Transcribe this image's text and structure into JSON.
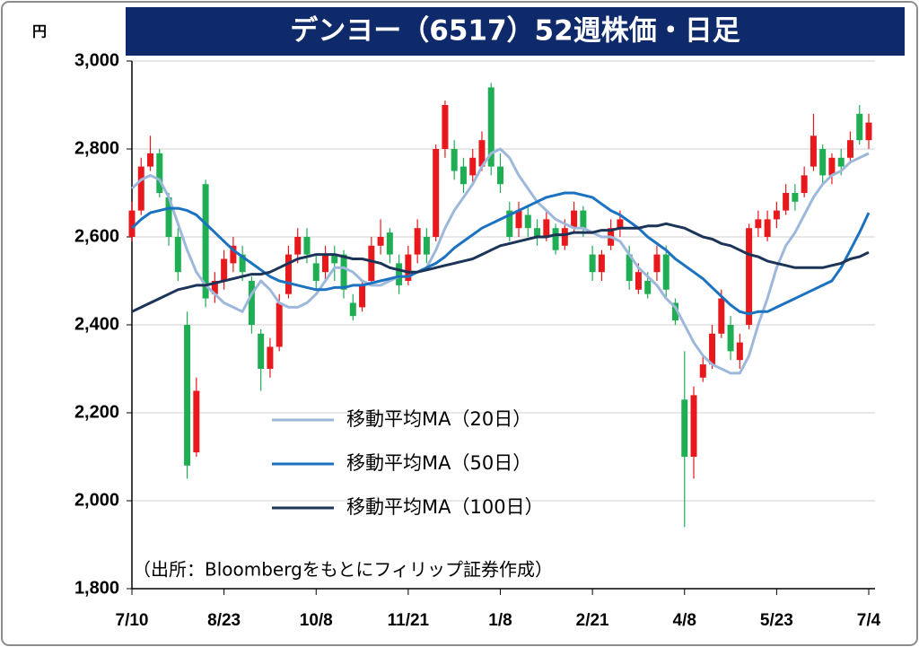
{
  "chart_data": {
    "type": "candlestick",
    "title": "デンヨー（6517）52週株価・日足",
    "unit": "円",
    "source": "（出所：Bloombergをもとにフィリップ証券作成）",
    "categories": [
      "7/10",
      null,
      null,
      null,
      null,
      null,
      null,
      null,
      null,
      null,
      "8/23",
      null,
      null,
      null,
      null,
      null,
      null,
      null,
      null,
      null,
      "10/8",
      null,
      null,
      null,
      null,
      null,
      null,
      null,
      null,
      null,
      "11/21",
      null,
      null,
      null,
      null,
      null,
      null,
      null,
      null,
      null,
      "1/8",
      null,
      null,
      null,
      null,
      null,
      null,
      null,
      null,
      null,
      "2/21",
      null,
      null,
      null,
      null,
      null,
      null,
      null,
      null,
      null,
      "4/8",
      null,
      null,
      null,
      null,
      null,
      null,
      null,
      null,
      null,
      "5/23",
      null,
      null,
      null,
      null,
      null,
      null,
      null,
      null,
      null,
      "7/4"
    ],
    "open": [
      2600,
      2660,
      2760,
      2790,
      2690,
      2600,
      2400,
      2110,
      2720,
      2470,
      2500,
      2540,
      2560,
      2500,
      2380,
      2300,
      2350,
      2470,
      2560,
      2600,
      2540,
      2520,
      2560,
      2560,
      2450,
      2440,
      2500,
      2580,
      2610,
      2540,
      2500,
      2560,
      2600,
      2600,
      2800,
      2800,
      2760,
      2740,
      2760,
      2940,
      2760,
      2660,
      2620,
      2650,
      2620,
      2600,
      2620,
      2580,
      2620,
      2660,
      2560,
      2520,
      2580,
      2620,
      2560,
      2480,
      2500,
      2520,
      2560,
      2450,
      2230,
      2100,
      2280,
      2310,
      2380,
      2400,
      2320,
      2400,
      2620,
      2600,
      2640,
      2660,
      2700,
      2700,
      2760,
      2800,
      2740,
      2780,
      2780,
      2880,
      2820
    ],
    "high": [
      2680,
      2780,
      2830,
      2800,
      2700,
      2620,
      2430,
      2280,
      2730,
      2520,
      2570,
      2600,
      2580,
      2510,
      2390,
      2370,
      2470,
      2580,
      2620,
      2620,
      2560,
      2580,
      2580,
      2570,
      2470,
      2500,
      2600,
      2640,
      2620,
      2560,
      2580,
      2640,
      2620,
      2810,
      2910,
      2820,
      2780,
      2800,
      2840,
      2950,
      2790,
      2680,
      2680,
      2670,
      2640,
      2660,
      2630,
      2640,
      2680,
      2670,
      2580,
      2570,
      2640,
      2660,
      2580,
      2540,
      2520,
      2580,
      2580,
      2460,
      2340,
      2260,
      2330,
      2400,
      2480,
      2420,
      2380,
      2630,
      2660,
      2660,
      2680,
      2720,
      2720,
      2760,
      2880,
      2810,
      2790,
      2800,
      2840,
      2900,
      2880
    ],
    "low": [
      2590,
      2650,
      2750,
      2690,
      2580,
      2500,
      2050,
      2100,
      2440,
      2450,
      2480,
      2520,
      2500,
      2380,
      2250,
      2280,
      2340,
      2460,
      2540,
      2540,
      2480,
      2500,
      2500,
      2460,
      2410,
      2430,
      2490,
      2560,
      2540,
      2470,
      2490,
      2540,
      2540,
      2590,
      2780,
      2730,
      2700,
      2720,
      2750,
      2740,
      2700,
      2590,
      2600,
      2600,
      2580,
      2590,
      2560,
      2570,
      2610,
      2600,
      2500,
      2500,
      2570,
      2600,
      2480,
      2470,
      2460,
      2500,
      2460,
      2400,
      1940,
      2050,
      2270,
      2300,
      2370,
      2320,
      2300,
      2390,
      2600,
      2590,
      2620,
      2650,
      2660,
      2690,
      2750,
      2720,
      2720,
      2740,
      2770,
      2810,
      2800
    ],
    "close": [
      2660,
      2760,
      2790,
      2700,
      2600,
      2520,
      2080,
      2250,
      2460,
      2500,
      2550,
      2580,
      2520,
      2400,
      2300,
      2350,
      2450,
      2560,
      2600,
      2560,
      2500,
      2560,
      2540,
      2480,
      2420,
      2490,
      2580,
      2600,
      2560,
      2490,
      2560,
      2620,
      2560,
      2800,
      2900,
      2750,
      2720,
      2780,
      2820,
      2760,
      2720,
      2600,
      2660,
      2620,
      2600,
      2640,
      2570,
      2620,
      2660,
      2620,
      2520,
      2560,
      2620,
      2640,
      2500,
      2520,
      2470,
      2560,
      2480,
      2410,
      2100,
      2240,
      2310,
      2380,
      2460,
      2340,
      2360,
      2620,
      2640,
      2640,
      2660,
      2700,
      2680,
      2740,
      2830,
      2740,
      2780,
      2760,
      2820,
      2820,
      2860
    ],
    "up_color": "#e8191c",
    "down_color": "#1fae54",
    "series": [
      {
        "name": "移動平均MA（20日）",
        "color": "#9db8da",
        "values": [
          2710,
          2730,
          2740,
          2730,
          2690,
          2630,
          2570,
          2520,
          2490,
          2470,
          2450,
          2440,
          2430,
          2470,
          2500,
          2480,
          2450,
          2440,
          2440,
          2450,
          2470,
          2500,
          2530,
          2530,
          2520,
          2500,
          2490,
          2490,
          2500,
          2510,
          2510,
          2520,
          2530,
          2570,
          2620,
          2660,
          2690,
          2720,
          2760,
          2790,
          2800,
          2780,
          2740,
          2710,
          2680,
          2660,
          2640,
          2630,
          2620,
          2620,
          2610,
          2600,
          2600,
          2590,
          2560,
          2530,
          2510,
          2490,
          2460,
          2440,
          2400,
          2360,
          2330,
          2310,
          2300,
          2290,
          2290,
          2330,
          2400,
          2460,
          2530,
          2580,
          2610,
          2650,
          2690,
          2720,
          2740,
          2750,
          2770,
          2780,
          2790
        ]
      },
      {
        "name": "移動平均MA（50日）",
        "color": "#1a72c0",
        "values": [
          2620,
          2640,
          2655,
          2660,
          2665,
          2665,
          2660,
          2650,
          2630,
          2610,
          2590,
          2570,
          2555,
          2540,
          2525,
          2510,
          2500,
          2495,
          2490,
          2485,
          2480,
          2480,
          2485,
          2485,
          2490,
          2490,
          2495,
          2500,
          2505,
          2510,
          2510,
          2520,
          2530,
          2540,
          2555,
          2575,
          2590,
          2605,
          2620,
          2630,
          2640,
          2650,
          2660,
          2670,
          2680,
          2690,
          2695,
          2700,
          2700,
          2695,
          2690,
          2675,
          2660,
          2650,
          2635,
          2620,
          2600,
          2585,
          2570,
          2550,
          2535,
          2520,
          2505,
          2485,
          2465,
          2445,
          2430,
          2425,
          2430,
          2430,
          2440,
          2450,
          2460,
          2470,
          2480,
          2490,
          2500,
          2530,
          2570,
          2610,
          2655
        ]
      },
      {
        "name": "移動平均MA（100日）",
        "color": "#1c3458",
        "values": [
          2430,
          2440,
          2450,
          2460,
          2470,
          2480,
          2485,
          2490,
          2490,
          2495,
          2500,
          2505,
          2510,
          2515,
          2515,
          2520,
          2530,
          2540,
          2550,
          2555,
          2560,
          2560,
          2560,
          2555,
          2550,
          2550,
          2545,
          2540,
          2530,
          2525,
          2520,
          2520,
          2525,
          2530,
          2535,
          2540,
          2545,
          2550,
          2560,
          2570,
          2580,
          2585,
          2590,
          2595,
          2600,
          2600,
          2605,
          2605,
          2610,
          2610,
          2610,
          2615,
          2615,
          2620,
          2620,
          2620,
          2625,
          2625,
          2630,
          2625,
          2620,
          2610,
          2600,
          2595,
          2585,
          2580,
          2570,
          2560,
          2555,
          2545,
          2540,
          2535,
          2530,
          2530,
          2530,
          2530,
          2535,
          2540,
          2550,
          2555,
          2565
        ]
      }
    ],
    "ylim": [
      1800,
      3000
    ],
    "yticks": [
      {
        "value": 1800,
        "label": "1,800"
      },
      {
        "value": 2000,
        "label": "2,000"
      },
      {
        "value": 2200,
        "label": "2,200"
      },
      {
        "value": 2400,
        "label": "2,400"
      },
      {
        "value": 2600,
        "label": "2,600"
      },
      {
        "value": 2800,
        "label": "2,800"
      },
      {
        "value": 3000,
        "label": "3,000"
      }
    ],
    "grid": true
  }
}
